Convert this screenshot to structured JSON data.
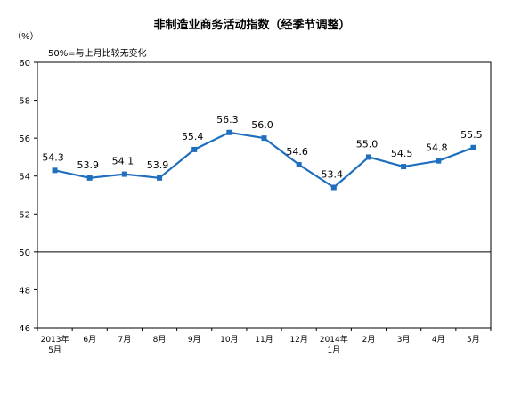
{
  "chart_data": {
    "type": "line",
    "title": "非制造业商务活动指数（经季节调整）",
    "unit_label": "（%）",
    "annotation": "50%=与上月比较无变化",
    "ylim": [
      46,
      60
    ],
    "yticks": [
      "60",
      "58",
      "56",
      "54",
      "52",
      "50",
      "48",
      "46"
    ],
    "reference_line": 50,
    "categories": [
      [
        "2013年",
        "5月"
      ],
      [
        "6月"
      ],
      [
        "7月"
      ],
      [
        "8月"
      ],
      [
        "9月"
      ],
      [
        "10月"
      ],
      [
        "11月"
      ],
      [
        "12月"
      ],
      [
        "2014年",
        "1月"
      ],
      [
        "2月"
      ],
      [
        "3月"
      ],
      [
        "4月"
      ],
      [
        "5月"
      ]
    ],
    "values": [
      54.3,
      53.9,
      54.1,
      53.9,
      55.4,
      56.3,
      56.0,
      54.6,
      53.4,
      55.0,
      54.5,
      54.8,
      55.5
    ],
    "data_labels": [
      "54.3",
      "53.9",
      "54.1",
      "53.9",
      "55.4",
      "56.3",
      "56.0",
      "54.6",
      "53.4",
      "55.0",
      "54.5",
      "54.8",
      "55.5"
    ],
    "line_color": "#1f6fbf",
    "grid": false
  }
}
